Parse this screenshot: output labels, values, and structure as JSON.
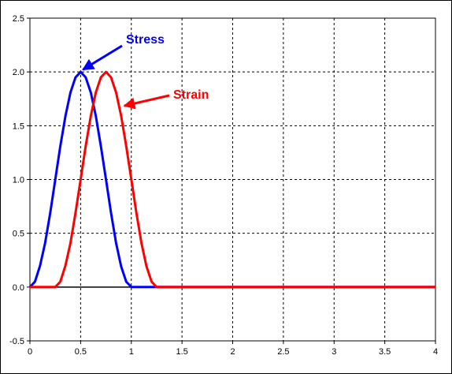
{
  "chart_data": {
    "type": "line",
    "title": "",
    "xlabel": "",
    "ylabel": "",
    "xlim": [
      0,
      4
    ],
    "ylim": [
      -0.5,
      2.5
    ],
    "grid": true,
    "x_ticks": [
      "0",
      "0.5",
      "1",
      "1.5",
      "2",
      "2.5",
      "3",
      "3.5",
      "4"
    ],
    "y_ticks": [
      "2.5",
      "2.0",
      "1.5",
      "1.0",
      "0.5",
      "0.0",
      "-0.5"
    ],
    "series": [
      {
        "name": "Stress",
        "color": "#0000ff",
        "x": [
          0,
          0.05,
          0.1,
          0.15,
          0.2,
          0.25,
          0.3,
          0.35,
          0.4,
          0.45,
          0.5,
          0.55,
          0.6,
          0.65,
          0.7,
          0.75,
          0.8,
          0.85,
          0.9,
          0.95,
          1.0,
          1.5,
          2.0,
          2.5,
          3.0,
          3.5,
          4.0
        ],
        "y": [
          0,
          0.05,
          0.2,
          0.41,
          0.69,
          1.0,
          1.31,
          1.59,
          1.81,
          1.95,
          2.0,
          1.95,
          1.81,
          1.59,
          1.31,
          1.0,
          0.69,
          0.41,
          0.19,
          0.05,
          0,
          0,
          0,
          0,
          0,
          0,
          0
        ]
      },
      {
        "name": "Strain",
        "color": "#ff0000",
        "x": [
          0,
          0.25,
          0.3,
          0.35,
          0.4,
          0.45,
          0.5,
          0.55,
          0.6,
          0.65,
          0.7,
          0.75,
          0.8,
          0.85,
          0.9,
          0.95,
          1.0,
          1.05,
          1.1,
          1.15,
          1.2,
          1.25,
          1.5,
          2.0,
          2.5,
          3.0,
          3.5,
          4.0
        ],
        "y": [
          0,
          0,
          0.05,
          0.2,
          0.41,
          0.69,
          1.0,
          1.31,
          1.59,
          1.81,
          1.95,
          2.0,
          1.95,
          1.81,
          1.59,
          1.31,
          1.0,
          0.69,
          0.41,
          0.19,
          0.05,
          0,
          0,
          0,
          0,
          0,
          0,
          0
        ]
      }
    ],
    "annotations": [
      {
        "text": "Stress",
        "color": "#0000ff",
        "points_to": {
          "x": 0.5,
          "y": 2.0
        }
      },
      {
        "text": "Strain",
        "color": "#ff0000",
        "points_to": {
          "x": 0.9,
          "y": 1.7
        }
      }
    ]
  }
}
